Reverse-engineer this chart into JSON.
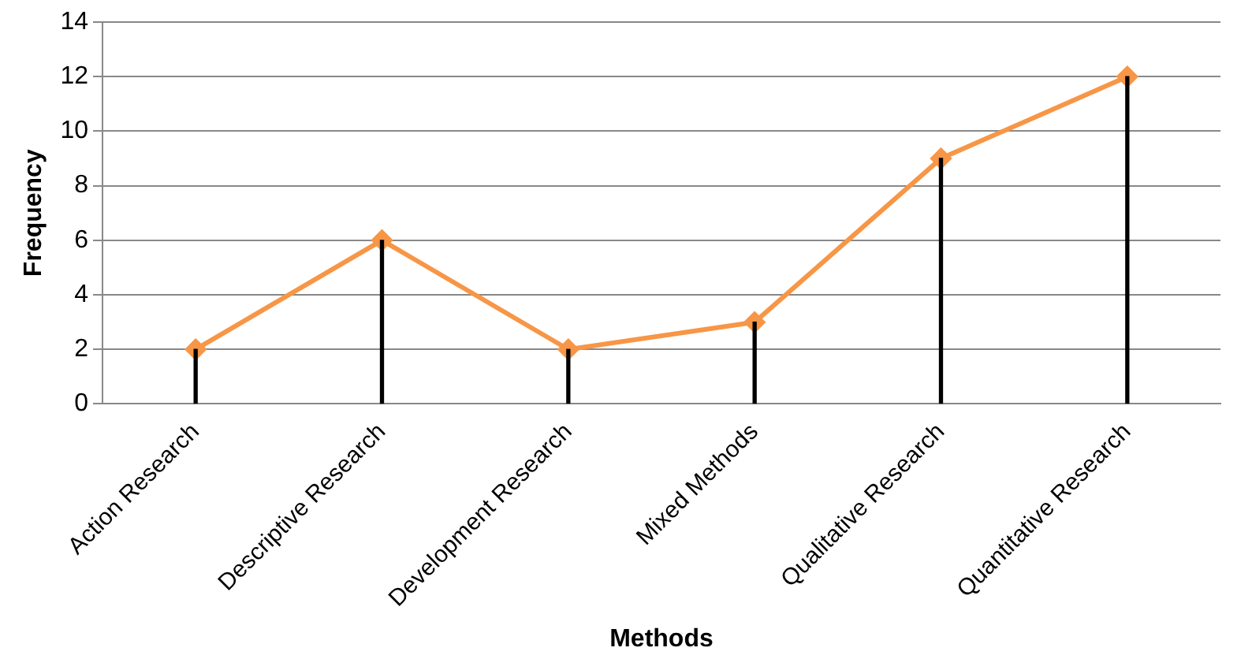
{
  "chart_data": {
    "type": "line",
    "xlabel": "Methods",
    "ylabel": "Frequency",
    "categories": [
      "Action Research",
      "Descriptive Research",
      "Development Research",
      "Mixed Methods",
      "Qualitative Research",
      "Quantitative Research"
    ],
    "series": [
      {
        "type": "bar",
        "color": "#000000",
        "values": [
          2,
          6,
          2,
          3,
          9,
          12
        ]
      },
      {
        "color": "#f79646",
        "values": [
          2,
          6,
          2,
          3,
          9,
          12
        ]
      }
    ],
    "ylim": [
      0,
      14
    ],
    "yticks": [
      0,
      2,
      4,
      6,
      8,
      10,
      12,
      14
    ],
    "grid": "y",
    "legend": false,
    "marker": "diamond",
    "line_style": "solid"
  }
}
